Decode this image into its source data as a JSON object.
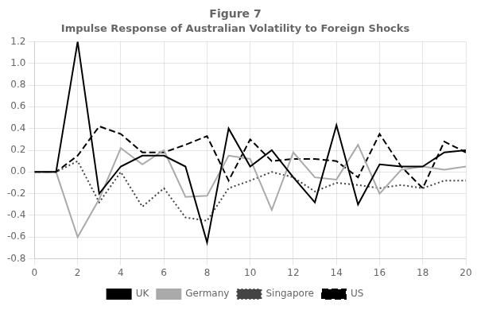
{
  "chart_data": {
    "type": "line",
    "title": "Figure 7",
    "subtitle": "Impulse Response of Australian Volatility to Foreign Shocks",
    "x": [
      0,
      1,
      2,
      3,
      4,
      5,
      6,
      7,
      8,
      9,
      10,
      11,
      12,
      13,
      14,
      15,
      16,
      17,
      18,
      19,
      20
    ],
    "series": [
      {
        "name": "UK",
        "color": "#000000",
        "line_style": "solid",
        "values": [
          0.0,
          0.0,
          1.2,
          -0.2,
          0.05,
          0.15,
          0.15,
          0.05,
          -0.65,
          0.4,
          0.05,
          0.2,
          -0.05,
          -0.28,
          0.43,
          -0.3,
          0.07,
          0.05,
          0.05,
          0.18,
          0.2
        ]
      },
      {
        "name": "Germany",
        "color": "#aaaaaa",
        "line_style": "solid",
        "values": [
          0.0,
          0.0,
          -0.6,
          -0.25,
          0.22,
          0.07,
          0.2,
          -0.23,
          -0.22,
          0.15,
          0.12,
          -0.35,
          0.18,
          -0.05,
          -0.07,
          0.25,
          -0.2,
          0.02,
          0.05,
          0.02,
          0.05
        ]
      },
      {
        "name": "Singapore",
        "color": "#444444",
        "line_style": "dotted",
        "values": [
          0.0,
          0.0,
          0.1,
          -0.28,
          0.0,
          -0.32,
          -0.15,
          -0.42,
          -0.45,
          -0.15,
          -0.08,
          0.0,
          -0.05,
          -0.18,
          -0.1,
          -0.12,
          -0.15,
          -0.12,
          -0.15,
          -0.08,
          -0.08
        ]
      },
      {
        "name": "US",
        "color": "#000000",
        "line_style": "dashed",
        "values": [
          0.0,
          0.0,
          0.15,
          0.42,
          0.35,
          0.18,
          0.18,
          0.25,
          0.33,
          -0.08,
          0.3,
          0.1,
          0.12,
          0.12,
          0.1,
          -0.05,
          0.35,
          0.05,
          -0.15,
          0.28,
          0.18
        ]
      }
    ],
    "xlim": [
      0,
      20
    ],
    "xticks": [
      0,
      2,
      4,
      6,
      8,
      10,
      12,
      14,
      16,
      18,
      20
    ],
    "ylim": [
      -0.8,
      1.2
    ],
    "yticks": [
      -0.8,
      -0.6,
      -0.4,
      -0.2,
      {
        "value": 0,
        "label": "0.0"
      },
      0.2,
      0.4,
      0.6,
      0.8,
      {
        "value": 1,
        "label": "1.0"
      },
      1.2
    ],
    "grid": true,
    "legend": "bottom"
  }
}
